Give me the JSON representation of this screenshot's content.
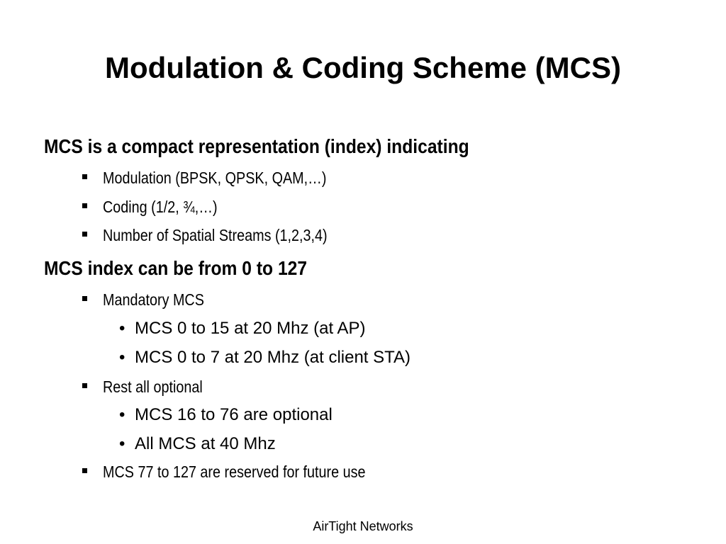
{
  "slide": {
    "title": "Modulation & Coding Scheme (MCS)",
    "sections": [
      {
        "heading": "MCS is a compact representation (index) indicating",
        "items": [
          {
            "text": "Modulation (BPSK, QPSK, QAM,…)"
          },
          {
            "text": "Coding (1/2, ¾,…)"
          },
          {
            "text": "Number of Spatial Streams (1,2,3,4)"
          }
        ]
      },
      {
        "heading": "MCS index can be from 0 to 127",
        "items": [
          {
            "text": "Mandatory MCS",
            "subitems": [
              "MCS 0 to 15 at 20 Mhz (at AP)",
              "MCS 0 to 7 at 20 Mhz (at client STA)"
            ]
          },
          {
            "text": "Rest all optional",
            "subitems": [
              "MCS 16 to 76 are optional",
              "All MCS at 40 Mhz"
            ]
          },
          {
            "text": "MCS 77 to 127 are reserved for future use"
          }
        ]
      }
    ],
    "bullet_glyph": "•",
    "footer": "AirTight Networks"
  }
}
